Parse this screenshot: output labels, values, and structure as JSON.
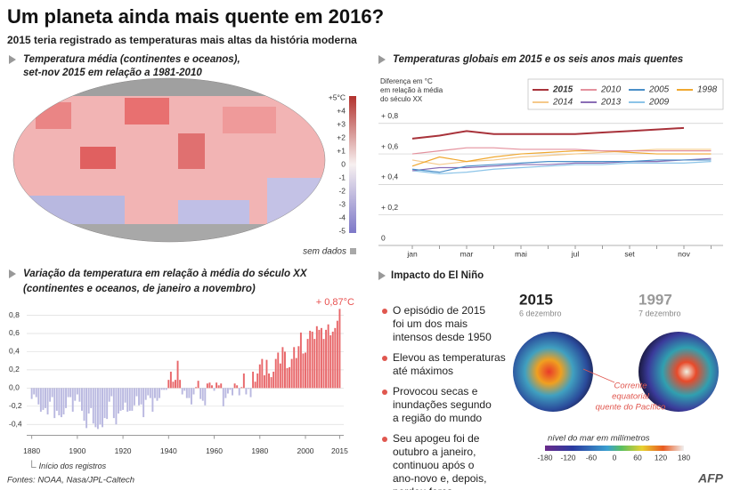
{
  "title": "Um planeta ainda mais quente em 2016?",
  "subtitle": "2015 teria registrado as temperaturas mais altas da história moderna",
  "map": {
    "title": [
      "Temperatura média (continentes e oceanos),",
      "set-nov 2015 em relação a 1981-2010"
    ],
    "scale": [
      "+5°C",
      "+4",
      "+3",
      "+2",
      "+1",
      "0",
      "-1",
      "-2",
      "-3",
      "-4",
      "-5"
    ],
    "no_data": "sem dados"
  },
  "chart_data": [
    {
      "type": "line",
      "title": "Temperaturas globais em 2015 e os seis anos mais quentes",
      "ylabel": [
        "Diferença em °C",
        "em relação à média",
        "do século XX"
      ],
      "categories": [
        "jan",
        null,
        "mar",
        null,
        "mai",
        null,
        "jul",
        null,
        "set",
        null,
        "nov",
        null
      ],
      "ylim": [
        0,
        0.9
      ],
      "yticks": [
        {
          "value": 0,
          "label": "0"
        },
        {
          "value": 0.2,
          "label": "+ 0,2"
        },
        {
          "value": 0.4,
          "label": "+ 0,4"
        },
        {
          "value": 0.6,
          "label": "+ 0,6"
        },
        {
          "value": 0.8,
          "label": "+ 0,8"
        }
      ],
      "grid": true,
      "series": [
        {
          "name": "2015",
          "color": "#a8323a",
          "values": [
            0.7,
            0.72,
            0.75,
            0.73,
            0.73,
            0.73,
            0.73,
            0.74,
            0.75,
            0.76,
            0.77,
            null
          ]
        },
        {
          "name": "2010",
          "color": "#e4919d",
          "values": [
            0.6,
            0.62,
            0.64,
            0.64,
            0.63,
            0.63,
            0.63,
            0.62,
            0.62,
            0.62,
            0.62,
            0.62
          ]
        },
        {
          "name": "2005",
          "color": "#4a8fc8",
          "values": [
            0.5,
            0.48,
            0.52,
            0.53,
            0.54,
            0.55,
            0.55,
            0.55,
            0.55,
            0.56,
            0.56,
            0.56
          ]
        },
        {
          "name": "1998",
          "color": "#f0a830",
          "values": [
            0.52,
            0.58,
            0.55,
            0.58,
            0.6,
            0.61,
            0.62,
            0.62,
            0.61,
            0.6,
            0.6,
            0.6
          ]
        },
        {
          "name": "2014",
          "color": "#f5c98a",
          "values": [
            0.56,
            0.53,
            0.55,
            0.56,
            0.58,
            0.59,
            0.6,
            0.61,
            0.62,
            0.63,
            0.63,
            0.63
          ]
        },
        {
          "name": "2013",
          "color": "#8a6db5",
          "values": [
            0.49,
            0.51,
            0.51,
            0.52,
            0.53,
            0.53,
            0.54,
            0.54,
            0.55,
            0.55,
            0.56,
            0.57
          ]
        },
        {
          "name": "2009",
          "color": "#8cc4e8",
          "values": [
            0.49,
            0.47,
            0.48,
            0.5,
            0.51,
            0.52,
            0.53,
            0.53,
            0.54,
            0.54,
            0.54,
            0.55
          ]
        }
      ]
    },
    {
      "type": "bar",
      "title": [
        "Variação da temperatura em relação à média do século XX",
        "(continentes e oceanos, de janeiro a novembro)"
      ],
      "annotation": "+ 0,87°C",
      "note": "Início dos registros",
      "colors": {
        "positive": "#e8676a",
        "negative": "#b9b8e0"
      },
      "xlim": [
        1878,
        2016
      ],
      "xticks": [
        1880,
        1900,
        1920,
        1940,
        1960,
        1980,
        2000,
        2015
      ],
      "ylim": [
        -0.5,
        0.9
      ],
      "yticks": [
        {
          "value": -0.4,
          "label": "-0,4"
        },
        {
          "value": -0.2,
          "label": "-0,2"
        },
        {
          "value": 0,
          "label": "0,0"
        },
        {
          "value": 0.2,
          "label": "0,2"
        },
        {
          "value": 0.4,
          "label": "0,4"
        },
        {
          "value": 0.6,
          "label": "0,6"
        },
        {
          "value": 0.8,
          "label": "0,8"
        }
      ],
      "x": [
        1880,
        1881,
        1882,
        1883,
        1884,
        1885,
        1886,
        1887,
        1888,
        1889,
        1890,
        1891,
        1892,
        1893,
        1894,
        1895,
        1896,
        1897,
        1898,
        1899,
        1900,
        1901,
        1902,
        1903,
        1904,
        1905,
        1906,
        1907,
        1908,
        1909,
        1910,
        1911,
        1912,
        1913,
        1914,
        1915,
        1916,
        1917,
        1918,
        1919,
        1920,
        1921,
        1922,
        1923,
        1924,
        1925,
        1926,
        1927,
        1928,
        1929,
        1930,
        1931,
        1932,
        1933,
        1934,
        1935,
        1936,
        1937,
        1938,
        1939,
        1940,
        1941,
        1942,
        1943,
        1944,
        1945,
        1946,
        1947,
        1948,
        1949,
        1950,
        1951,
        1952,
        1953,
        1954,
        1955,
        1956,
        1957,
        1958,
        1959,
        1960,
        1961,
        1962,
        1963,
        1964,
        1965,
        1966,
        1967,
        1968,
        1969,
        1970,
        1971,
        1972,
        1973,
        1974,
        1975,
        1976,
        1977,
        1978,
        1979,
        1980,
        1981,
        1982,
        1983,
        1984,
        1985,
        1986,
        1987,
        1988,
        1989,
        1990,
        1991,
        1992,
        1993,
        1994,
        1995,
        1996,
        1997,
        1998,
        1999,
        2000,
        2001,
        2002,
        2003,
        2004,
        2005,
        2006,
        2007,
        2008,
        2009,
        2010,
        2011,
        2012,
        2013,
        2014,
        2015
      ],
      "values": [
        -0.12,
        -0.07,
        -0.1,
        -0.18,
        -0.26,
        -0.24,
        -0.22,
        -0.29,
        -0.15,
        -0.1,
        -0.33,
        -0.25,
        -0.3,
        -0.32,
        -0.29,
        -0.22,
        -0.1,
        -0.1,
        -0.26,
        -0.14,
        -0.07,
        -0.15,
        -0.25,
        -0.36,
        -0.44,
        -0.28,
        -0.22,
        -0.39,
        -0.43,
        -0.45,
        -0.4,
        -0.43,
        -0.33,
        -0.34,
        -0.15,
        -0.09,
        -0.33,
        -0.4,
        -0.28,
        -0.25,
        -0.24,
        -0.16,
        -0.26,
        -0.25,
        -0.25,
        -0.19,
        -0.09,
        -0.19,
        -0.18,
        -0.32,
        -0.13,
        -0.08,
        -0.11,
        -0.26,
        -0.11,
        -0.14,
        -0.11,
        -0.02,
        -0.02,
        -0.02,
        0.09,
        0.18,
        0.07,
        0.09,
        0.3,
        0.09,
        -0.07,
        -0.03,
        -0.11,
        -0.11,
        -0.18,
        -0.07,
        0.01,
        0.08,
        -0.12,
        -0.14,
        -0.19,
        0.05,
        0.06,
        0.03,
        -0.03,
        0.06,
        0.03,
        0.05,
        -0.2,
        -0.11,
        -0.06,
        -0.02,
        -0.08,
        0.05,
        0.03,
        -0.08,
        0.01,
        0.16,
        -0.07,
        -0.01,
        -0.1,
        0.18,
        0.07,
        0.16,
        0.26,
        0.32,
        0.14,
        0.31,
        0.16,
        0.12,
        0.18,
        0.32,
        0.39,
        0.27,
        0.45,
        0.4,
        0.22,
        0.23,
        0.32,
        0.45,
        0.33,
        0.46,
        0.61,
        0.38,
        0.39,
        0.54,
        0.63,
        0.62,
        0.54,
        0.68,
        0.64,
        0.66,
        0.54,
        0.64,
        0.7,
        0.58,
        0.62,
        0.66,
        0.74,
        0.87
      ]
    }
  ],
  "el_nino": {
    "title": "Impacto do El Niño",
    "bullets": [
      [
        "O episódio de 2015",
        "foi um dos mais",
        "intensos desde 1950"
      ],
      [
        "Elevou as temperaturas",
        "até máximos"
      ],
      [
        "Provocou secas e",
        "inundações segundo",
        "a região do mundo"
      ],
      [
        "Seu apogeu foi de",
        "outubro a janeiro,",
        "continuou após o",
        "ano-novo e, depois,",
        "perdeu força"
      ]
    ],
    "globes": [
      {
        "year": "2015",
        "date": "6 dezembro"
      },
      {
        "year": "1997",
        "date": "7 dezembro"
      }
    ],
    "annotation": [
      "Corrente",
      "equatorial",
      "quente do Pacífico"
    ],
    "scale": {
      "title": "nível do mar em milímetros",
      "ticks": [
        -180,
        -120,
        -60,
        0,
        60,
        120,
        180
      ]
    }
  },
  "source": "Fontes: NOAA, Nasa/JPL-Caltech",
  "logo": "AFP"
}
